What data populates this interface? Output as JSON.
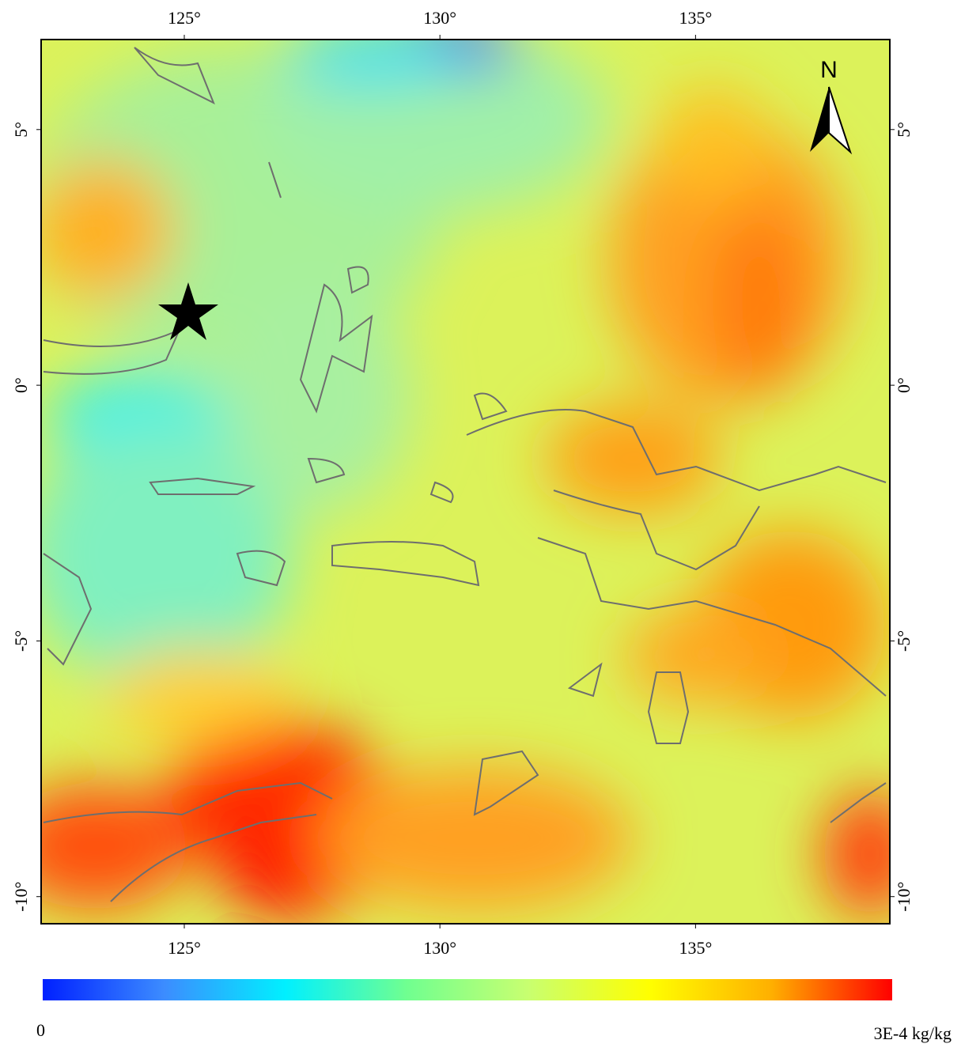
{
  "map": {
    "xlim": [
      122.2,
      138.8
    ],
    "ylim": [
      -10.53,
      6.76
    ],
    "xticks": [
      {
        "value": 125,
        "label": "125°"
      },
      {
        "value": 130,
        "label": "130°"
      },
      {
        "value": 135,
        "label": "135°"
      }
    ],
    "yticks": [
      {
        "value": 5,
        "label": "5°"
      },
      {
        "value": 0,
        "label": "0°"
      },
      {
        "value": -5,
        "label": "-5°"
      },
      {
        "value": -10,
        "label": "-10°"
      }
    ]
  },
  "north_label": "N",
  "colorbar": {
    "min_label": "0",
    "max_label": "3E-4 kg/kg",
    "colors": [
      "#0020ff",
      "#3c8cff",
      "#00f0ff",
      "#70ff90",
      "#c8ff70",
      "#ffff00",
      "#ffb000",
      "#ff0000"
    ]
  }
}
